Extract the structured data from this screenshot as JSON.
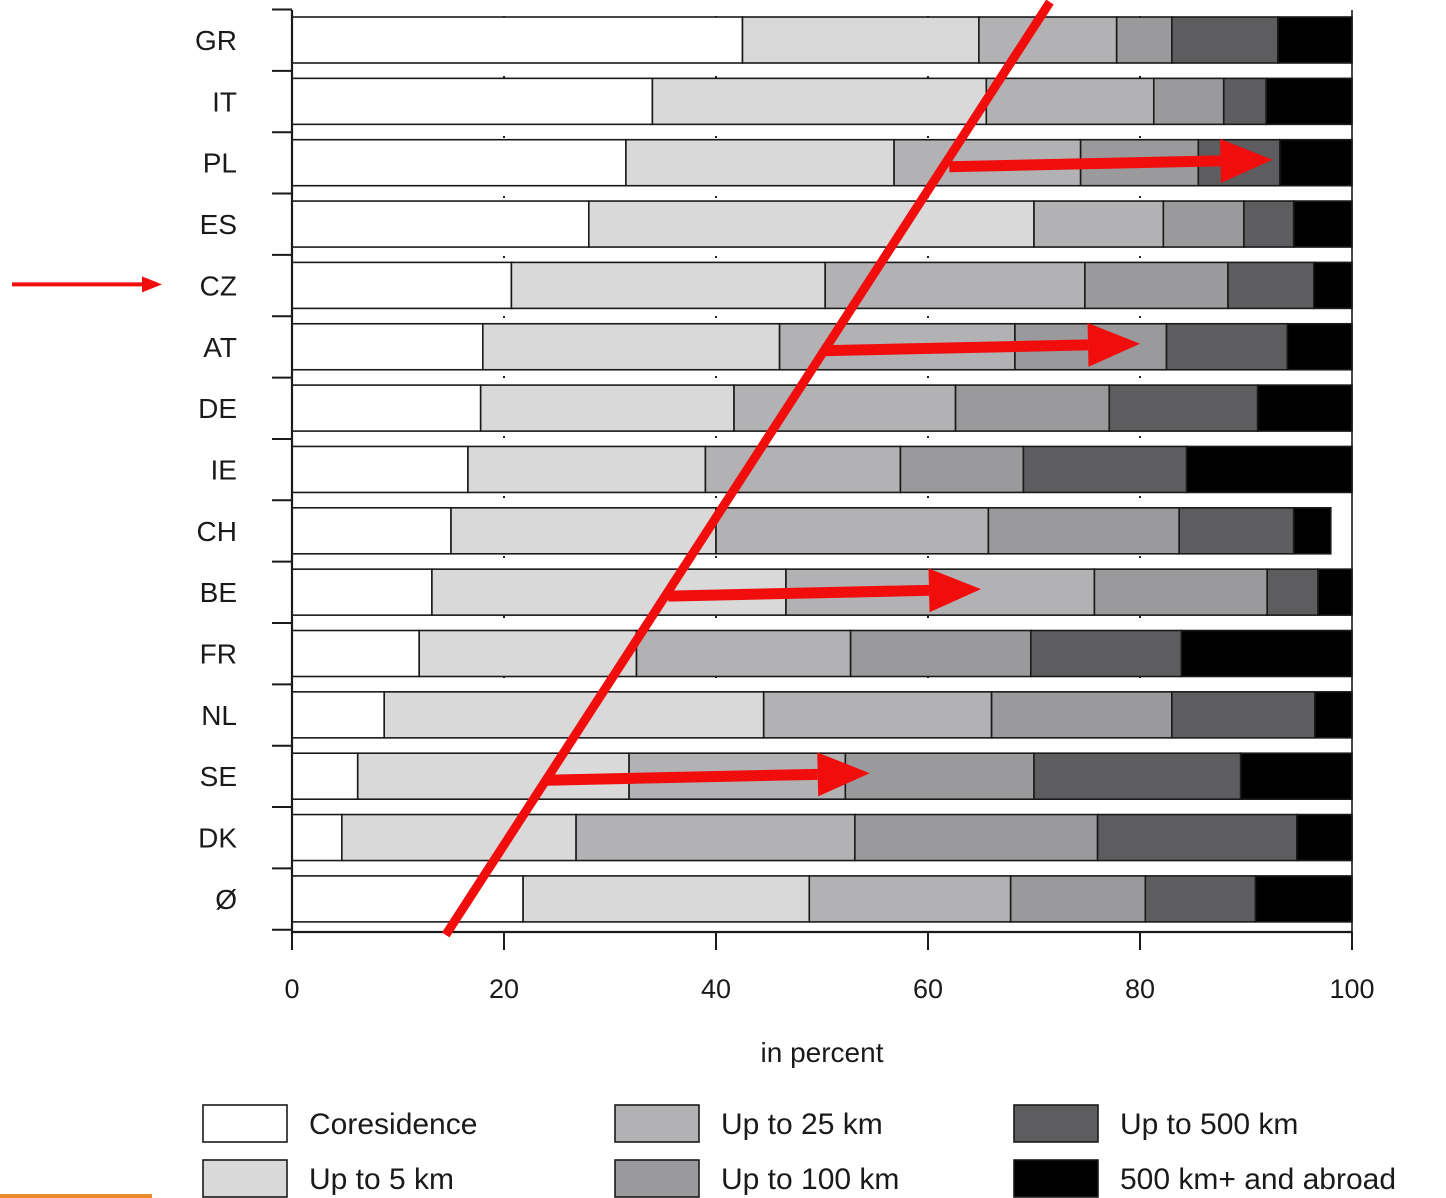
{
  "chart_data": {
    "type": "bar",
    "orientation": "horizontal",
    "stacked": true,
    "xlabel": "in percent",
    "xlim": [
      0,
      100
    ],
    "xticks": [
      "0",
      "20",
      "40",
      "60",
      "80",
      "100"
    ],
    "categories": [
      "GR",
      "IT",
      "PL",
      "ES",
      "CZ",
      "AT",
      "DE",
      "IE",
      "CH",
      "BE",
      "FR",
      "NL",
      "SE",
      "DK",
      "Ø"
    ],
    "legend_position": "bottom",
    "series": [
      {
        "name": "Coresidence",
        "color": "#ffffff",
        "values": [
          42.5,
          34,
          31.5,
          28,
          20.7,
          18,
          17.8,
          16.6,
          15,
          13.2,
          12,
          8.7,
          6.2,
          4.7,
          21.8
        ]
      },
      {
        "name": "Up to 5 km",
        "color": "#d9d9da",
        "values": [
          22.3,
          31.5,
          25.3,
          42,
          29.6,
          28,
          23.9,
          22.4,
          25,
          33.4,
          20.5,
          35.8,
          25.6,
          22.1,
          27
        ]
      },
      {
        "name": "Up to 25 km",
        "color": "#b2b2b4",
        "values": [
          13,
          15.8,
          17.6,
          12.2,
          24.5,
          22.2,
          20.9,
          18.4,
          25.7,
          29.1,
          20.2,
          21.5,
          20.4,
          26.3,
          19
        ]
      },
      {
        "name": "Up to 100 km",
        "color": "#9a9a9c",
        "values": [
          5.2,
          6.6,
          11.1,
          7.6,
          13.5,
          14.3,
          14.5,
          11.6,
          18,
          16.3,
          17,
          17,
          17.8,
          22.9,
          12.7
        ]
      },
      {
        "name": "Up to 500 km",
        "color": "#5d5d60",
        "values": [
          10,
          4,
          7.7,
          4.7,
          8.1,
          11.4,
          14,
          15.4,
          10.8,
          4.8,
          14.2,
          13.5,
          19.5,
          18.8,
          10.4
        ]
      },
      {
        "name": "500 km+ and abroad",
        "color": "#000000",
        "values": [
          7,
          8.1,
          6.8,
          5.5,
          3.6,
          6.1,
          8.9,
          15.6,
          3.5,
          3.2,
          16.1,
          3.5,
          10.5,
          5.2,
          9.1
        ]
      }
    ],
    "annotations": [
      {
        "type": "line",
        "color": "#f20d0d",
        "from": {
          "x": 14.5,
          "y": "Ø"
        },
        "to": {
          "x": 71.5,
          "y": "GR"
        }
      },
      {
        "type": "arrow",
        "color": "#f20d0d",
        "category": "PL",
        "from_x": 62,
        "to_x": 92.5
      },
      {
        "type": "arrow",
        "color": "#f20d0d",
        "category": "AT",
        "from_x": 50,
        "to_x": 80
      },
      {
        "type": "arrow",
        "color": "#f20d0d",
        "category": "BE",
        "from_x": 35.5,
        "to_x": 65
      },
      {
        "type": "arrow",
        "color": "#f20d0d",
        "category": "SE",
        "from_x": 24,
        "to_x": 54.5
      },
      {
        "type": "pointer-arrow",
        "color": "#f20d0d",
        "category": "CZ"
      }
    ]
  }
}
